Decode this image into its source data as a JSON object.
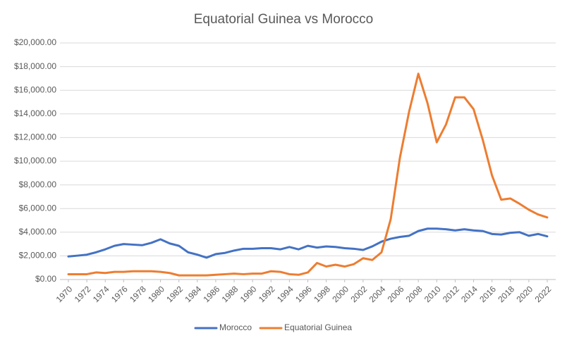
{
  "chart_data": {
    "type": "line",
    "title": "Equatorial Guinea vs Morocco",
    "x": [
      1970,
      1971,
      1972,
      1973,
      1974,
      1975,
      1976,
      1977,
      1978,
      1979,
      1980,
      1981,
      1982,
      1983,
      1984,
      1985,
      1986,
      1987,
      1988,
      1989,
      1990,
      1991,
      1992,
      1993,
      1994,
      1995,
      1996,
      1997,
      1998,
      1999,
      2000,
      2001,
      2002,
      2003,
      2004,
      2005,
      2006,
      2007,
      2008,
      2009,
      2010,
      2011,
      2012,
      2013,
      2014,
      2015,
      2016,
      2017,
      2018,
      2019,
      2020,
      2021,
      2022
    ],
    "series": [
      {
        "name": "Morocco",
        "color": "#4472c4",
        "values": [
          1950,
          2020,
          2100,
          2300,
          2550,
          2850,
          3000,
          2950,
          2900,
          3100,
          3400,
          3050,
          2850,
          2300,
          2100,
          1850,
          2150,
          2250,
          2450,
          2600,
          2600,
          2650,
          2650,
          2550,
          2750,
          2550,
          2850,
          2700,
          2800,
          2750,
          2650,
          2600,
          2500,
          2800,
          3200,
          3450,
          3600,
          3700,
          4100,
          4300,
          4300,
          4250,
          4150,
          4250,
          4150,
          4100,
          3850,
          3800,
          3950,
          4000,
          3700,
          3850,
          3650
        ]
      },
      {
        "name": "Equatorial Guinea",
        "color": "#ed7d31",
        "values": [
          450,
          450,
          450,
          600,
          550,
          650,
          650,
          700,
          700,
          700,
          650,
          550,
          350,
          350,
          350,
          350,
          400,
          450,
          500,
          450,
          500,
          500,
          700,
          650,
          450,
          400,
          600,
          1400,
          1100,
          1250,
          1100,
          1300,
          1800,
          1650,
          2300,
          5100,
          10300,
          14200,
          17400,
          14900,
          11600,
          13100,
          15400,
          15400,
          14400,
          11800,
          8800,
          6750,
          6850,
          6400,
          5900,
          5500,
          5250
        ]
      }
    ],
    "xlim": [
      1970,
      2022
    ],
    "xticks": [
      1970,
      1972,
      1974,
      1976,
      1978,
      1980,
      1982,
      1984,
      1986,
      1988,
      1990,
      1992,
      1994,
      1996,
      1998,
      2000,
      2002,
      2004,
      2006,
      2008,
      2010,
      2012,
      2014,
      2016,
      2018,
      2020,
      2022
    ],
    "ylim": [
      0,
      20000
    ],
    "yticks": [
      {
        "value": 0,
        "label": "$0.00"
      },
      {
        "value": 2000,
        "label": "$2,000.00"
      },
      {
        "value": 4000,
        "label": "$4,000.00"
      },
      {
        "value": 6000,
        "label": "$6,000.00"
      },
      {
        "value": 8000,
        "label": "$8,000.00"
      },
      {
        "value": 10000,
        "label": "$10,000.00"
      },
      {
        "value": 12000,
        "label": "$12,000.00"
      },
      {
        "value": 14000,
        "label": "$14,000.00"
      },
      {
        "value": 16000,
        "label": "$16,000.00"
      },
      {
        "value": 18000,
        "label": "$18,000.00"
      },
      {
        "value": 20000,
        "label": "$20,000.00"
      }
    ],
    "grid": true,
    "legend": "bottom"
  }
}
